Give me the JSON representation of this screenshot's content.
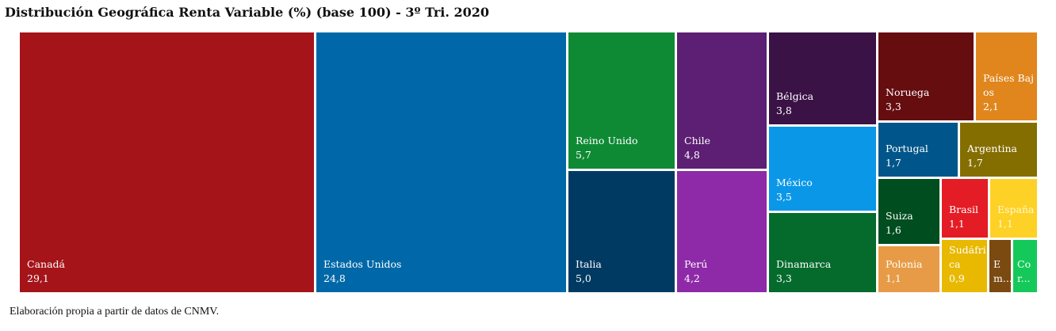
{
  "title": "Distribución Geográfica Renta Variable (%) (base 100) - 3º Tri. 2020",
  "footer": "Elaboración propia a partir de datos de CNMV.",
  "chart_data": {
    "type": "treemap",
    "title": "Distribución Geográfica Renta Variable (%) (base 100) - 3º Tri. 2020",
    "items": [
      {
        "label": "Canadá",
        "value": "29,1",
        "color": "#a51419"
      },
      {
        "label": "Estados Unidos",
        "value": "24,8",
        "color": "#0068a8"
      },
      {
        "label": "Reino Unido",
        "value": "5,7",
        "color": "#0f8a34"
      },
      {
        "label": "Italia",
        "value": "5,0",
        "color": "#003a63"
      },
      {
        "label": "Chile",
        "value": "4,8",
        "color": "#5c1f73"
      },
      {
        "label": "Perú",
        "value": "4,2",
        "color": "#8e2aa8"
      },
      {
        "label": "Bélgica",
        "value": "3,8",
        "color": "#3a1245"
      },
      {
        "label": "México",
        "value": "3,5",
        "color": "#0a97e8"
      },
      {
        "label": "Dinamarca",
        "value": "3,3",
        "color": "#046b2c"
      },
      {
        "label": "Noruega",
        "value": "3,3",
        "color": "#660d10"
      },
      {
        "label": "Países Bajos",
        "value": "2,1",
        "color": "#e0861d"
      },
      {
        "label": "Portugal",
        "value": "1,7",
        "color": "#00568a"
      },
      {
        "label": "Argentina",
        "value": "1,7",
        "color": "#856e00"
      },
      {
        "label": "Suiza",
        "value": "1,6",
        "color": "#004d1f"
      },
      {
        "label": "Brasil",
        "value": "1,1",
        "color": "#e41c25"
      },
      {
        "label": "España",
        "value": "1,1",
        "color": "#fdd125"
      },
      {
        "label": "Polonia",
        "value": "1,1",
        "color": "#e89b46"
      },
      {
        "label": "Sudáfrica",
        "value": "0,9",
        "color": "#e8b900"
      },
      {
        "label": "Em...",
        "value": "",
        "color": "#7a4a10"
      },
      {
        "label": "Cor...",
        "value": "",
        "color": "#14c95a"
      }
    ]
  }
}
